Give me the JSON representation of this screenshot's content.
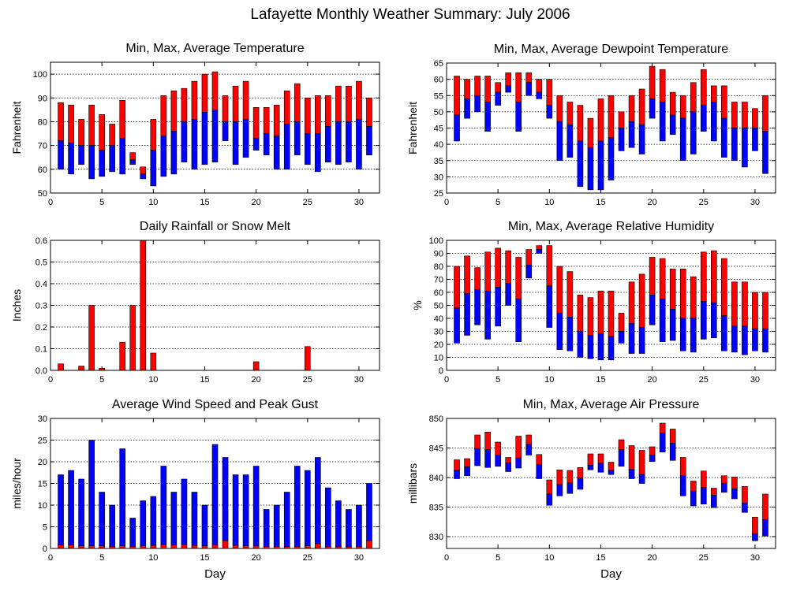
{
  "page_title": "Lafayette Monthly Weather Summary: July 2006",
  "colors": {
    "upper": "#ff0000",
    "lower": "#0000ff",
    "outline": "#000000",
    "grid": "#000000"
  },
  "chart_data": [
    {
      "id": "temperature",
      "type": "bar",
      "style": "range",
      "title": "Min, Max, Average Temperature",
      "xlabel": "",
      "ylabel": "Fahrenheit",
      "xlim": [
        0,
        32
      ],
      "xticks": [
        0,
        5,
        10,
        15,
        20,
        25,
        30
      ],
      "ylim": [
        50,
        105
      ],
      "yticks": [
        50,
        60,
        70,
        80,
        90,
        100
      ],
      "grid": true,
      "days": [
        1,
        2,
        3,
        4,
        5,
        6,
        7,
        8,
        9,
        10,
        11,
        12,
        13,
        14,
        15,
        16,
        17,
        18,
        19,
        20,
        21,
        22,
        23,
        24,
        25,
        26,
        27,
        28,
        29,
        30,
        31
      ],
      "min": [
        60,
        58,
        62,
        56,
        57,
        59,
        58,
        62,
        56,
        53,
        57,
        58,
        63,
        60,
        62,
        63,
        72,
        62,
        65,
        68,
        66,
        60,
        60,
        66,
        62,
        59,
        63,
        62,
        63,
        60,
        66
      ],
      "max": [
        88,
        87,
        81,
        87,
        83,
        79,
        89,
        67,
        61,
        81,
        91,
        93,
        94,
        97,
        100,
        101,
        91,
        95,
        97,
        86,
        86,
        87,
        93,
        96,
        90,
        91,
        91,
        95,
        95,
        97,
        90
      ],
      "avg": [
        72,
        71,
        70,
        70,
        68,
        70,
        73,
        64,
        58,
        68,
        74,
        76,
        80,
        81,
        84,
        85,
        80,
        80,
        81,
        73,
        75,
        74,
        79,
        80,
        75,
        75,
        78,
        80,
        80,
        81,
        78
      ]
    },
    {
      "id": "dewpoint",
      "type": "bar",
      "style": "range",
      "title": "Min, Max, Average Dewpoint Temperature",
      "xlabel": "",
      "ylabel": "Fahrenheit",
      "xlim": [
        0,
        32
      ],
      "xticks": [
        0,
        5,
        10,
        15,
        20,
        25,
        30
      ],
      "ylim": [
        25,
        65
      ],
      "yticks": [
        25,
        30,
        35,
        40,
        45,
        50,
        55,
        60,
        65
      ],
      "grid": true,
      "days": [
        1,
        2,
        3,
        4,
        5,
        6,
        7,
        8,
        9,
        10,
        11,
        12,
        13,
        14,
        15,
        16,
        17,
        18,
        19,
        20,
        21,
        22,
        23,
        24,
        25,
        26,
        27,
        28,
        29,
        30,
        31
      ],
      "min": [
        41,
        48,
        50,
        44,
        52,
        56,
        44,
        55,
        54,
        48,
        35,
        36,
        27,
        26,
        26,
        29,
        38,
        39,
        37,
        48,
        41,
        43,
        35,
        37,
        44,
        41,
        36,
        35,
        33,
        38,
        31
      ],
      "max": [
        61,
        60,
        61,
        61,
        59,
        62,
        62,
        62,
        60,
        60,
        55,
        53,
        52,
        48,
        54,
        55,
        50,
        55,
        57,
        64,
        63,
        56,
        55,
        59,
        63,
        58,
        58,
        53,
        53,
        51,
        55
      ],
      "avg": [
        49,
        54,
        55,
        53,
        56,
        58,
        53,
        59,
        56,
        52,
        47,
        46,
        41,
        39,
        41,
        42,
        45,
        47,
        46,
        54,
        53,
        49,
        48,
        50,
        52,
        53,
        48,
        45,
        45,
        45,
        44
      ]
    },
    {
      "id": "rainfall",
      "type": "bar",
      "title": "Daily Rainfall or Snow Melt",
      "xlabel": "",
      "ylabel": "Inches",
      "xlim": [
        0,
        32
      ],
      "xticks": [
        0,
        5,
        10,
        15,
        20,
        25,
        30
      ],
      "ylim": [
        0,
        0.6
      ],
      "yticks": [
        0,
        0.1,
        0.2,
        0.3,
        0.4,
        0.5,
        0.6
      ],
      "ytick_labels": [
        "0.0",
        "0.1",
        "0.2",
        "0.3",
        "0.4",
        "0.5",
        "0.6"
      ],
      "grid": true,
      "days": [
        1,
        2,
        3,
        4,
        5,
        6,
        7,
        8,
        9,
        10,
        11,
        12,
        13,
        14,
        15,
        16,
        17,
        18,
        19,
        20,
        21,
        22,
        23,
        24,
        25,
        26,
        27,
        28,
        29,
        30,
        31
      ],
      "values": [
        0.03,
        0,
        0.02,
        0.3,
        0.01,
        0,
        0.13,
        0.3,
        0.6,
        0.08,
        0,
        0,
        0,
        0,
        0,
        0,
        0,
        0,
        0,
        0.04,
        0,
        0,
        0,
        0,
        0.11,
        0,
        0,
        0,
        0,
        0,
        0
      ]
    },
    {
      "id": "humidity",
      "type": "bar",
      "style": "range",
      "title": "Min, Max, Average Relative Humidity",
      "xlabel": "",
      "ylabel": "%",
      "xlim": [
        0,
        32
      ],
      "xticks": [
        0,
        5,
        10,
        15,
        20,
        25,
        30
      ],
      "ylim": [
        0,
        100
      ],
      "yticks": [
        0,
        10,
        20,
        30,
        40,
        50,
        60,
        70,
        80,
        90,
        100
      ],
      "grid": true,
      "days": [
        1,
        2,
        3,
        4,
        5,
        6,
        7,
        8,
        9,
        10,
        11,
        12,
        13,
        14,
        15,
        16,
        17,
        18,
        19,
        20,
        21,
        22,
        23,
        24,
        25,
        26,
        27,
        28,
        29,
        30,
        31
      ],
      "min": [
        21,
        27,
        35,
        24,
        34,
        50,
        22,
        71,
        90,
        33,
        16,
        15,
        10,
        9,
        8,
        8,
        21,
        13,
        13,
        35,
        22,
        23,
        15,
        14,
        24,
        25,
        15,
        14,
        12,
        15,
        14
      ],
      "max": [
        80,
        88,
        79,
        91,
        94,
        92,
        87,
        93,
        96,
        96,
        80,
        76,
        58,
        56,
        61,
        61,
        44,
        68,
        74,
        87,
        86,
        78,
        78,
        72,
        91,
        92,
        86,
        68,
        68,
        60,
        60
      ],
      "avg": [
        48,
        59,
        62,
        61,
        64,
        67,
        55,
        81,
        93,
        65,
        44,
        41,
        30,
        27,
        28,
        26,
        30,
        36,
        33,
        58,
        55,
        47,
        40,
        40,
        53,
        52,
        42,
        34,
        34,
        32,
        32
      ]
    },
    {
      "id": "wind",
      "type": "bar",
      "style": "stacked",
      "title": "Average Wind Speed and Peak Gust",
      "xlabel": "Day",
      "ylabel": "miles/hour",
      "xlim": [
        0,
        32
      ],
      "xticks": [
        0,
        5,
        10,
        15,
        20,
        25,
        30
      ],
      "ylim": [
        0,
        30
      ],
      "yticks": [
        0,
        5,
        10,
        15,
        20,
        25,
        30
      ],
      "grid": true,
      "days": [
        1,
        2,
        3,
        4,
        5,
        6,
        7,
        8,
        9,
        10,
        11,
        12,
        13,
        14,
        15,
        16,
        17,
        18,
        19,
        20,
        21,
        22,
        23,
        24,
        25,
        26,
        27,
        28,
        29,
        30,
        31
      ],
      "average": [
        0.8,
        0.8,
        0.6,
        0.6,
        0.6,
        0.5,
        0.6,
        0.5,
        0.6,
        0.7,
        0.9,
        0.8,
        0.9,
        0.7,
        0.6,
        0.8,
        1.8,
        0.7,
        0.6,
        0.6,
        0.5,
        0.5,
        0.4,
        0.5,
        0.6,
        1.1,
        0.5,
        0.4,
        0.4,
        0.5,
        1.8
      ],
      "peak_gust": [
        17,
        18,
        16,
        25,
        13,
        10,
        23,
        7,
        11,
        12,
        19,
        13,
        16,
        13,
        10,
        24,
        21,
        17,
        17,
        19,
        9,
        10,
        13,
        19,
        18,
        21,
        14,
        11,
        9,
        10,
        15
      ]
    },
    {
      "id": "pressure",
      "type": "bar",
      "style": "range",
      "title": "Min, Max, Average Air Pressure",
      "xlabel": "Day",
      "ylabel": "millibars",
      "xlim": [
        0,
        32
      ],
      "xticks": [
        0,
        5,
        10,
        15,
        20,
        25,
        30
      ],
      "ylim": [
        828,
        850
      ],
      "yticks": [
        830,
        835,
        840,
        845,
        850
      ],
      "grid": true,
      "days": [
        1,
        2,
        3,
        4,
        5,
        6,
        7,
        8,
        9,
        10,
        11,
        12,
        13,
        14,
        15,
        16,
        17,
        18,
        19,
        20,
        21,
        22,
        23,
        24,
        25,
        26,
        27,
        28,
        29,
        30,
        31
      ],
      "min": [
        839.8,
        840.3,
        842.0,
        841.7,
        841.9,
        841.0,
        841.6,
        843.8,
        839.8,
        835.3,
        836.9,
        837.3,
        838.0,
        841.3,
        840.9,
        840.5,
        841.9,
        839.8,
        839.0,
        842.7,
        844.3,
        842.9,
        836.9,
        835.2,
        835.5,
        834.9,
        837.5,
        836.4,
        834.1,
        829.3,
        830.1
      ],
      "max": [
        843.0,
        843.2,
        847.2,
        847.7,
        846.0,
        843.4,
        847.0,
        847.2,
        843.9,
        839.6,
        841.3,
        841.2,
        841.7,
        844.0,
        844.0,
        842.6,
        846.4,
        845.4,
        844.6,
        845.2,
        849.2,
        848.2,
        843.4,
        839.4,
        841.1,
        838.2,
        840.3,
        840.1,
        838.5,
        833.3,
        837.2
      ],
      "avg": [
        841.2,
        841.8,
        844.9,
        844.7,
        843.8,
        842.5,
        843.3,
        845.6,
        842.2,
        837.2,
        838.8,
        839.1,
        839.9,
        842.1,
        842.4,
        841.2,
        844.7,
        841.4,
        840.5,
        843.8,
        847.5,
        845.8,
        840.3,
        837.7,
        838.3,
        837.0,
        839.0,
        838.1,
        835.7,
        830.5,
        832.9
      ]
    }
  ]
}
